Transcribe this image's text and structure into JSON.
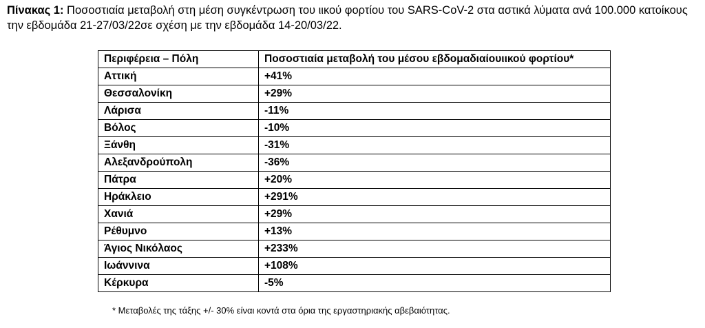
{
  "caption": {
    "label": "Πίνακας 1:",
    "text": "Ποσοστιαία μεταβολή στη μέση συγκέντρωση του ιικού φορτίου του SARS-CoV-2 στα αστικά λύματα ανά 100.000 κατοίκους την εβδομάδα 21-27/03/22σε σχέση με την εβδομάδα 14-20/03/22."
  },
  "table": {
    "headers": [
      "Περιφέρεια – Πόλη",
      "Ποσοστιαία μεταβολή του μέσου εβδομαδιαίουιικού φορτίου*"
    ],
    "rows": [
      {
        "city": "Αττική",
        "change": "+41%"
      },
      {
        "city": "Θεσσαλονίκη",
        "change": "+29%"
      },
      {
        "city": "Λάρισα",
        "change": "-11%"
      },
      {
        "city": "Βόλος",
        "change": "-10%"
      },
      {
        "city": "Ξάνθη",
        "change": "-31%"
      },
      {
        "city": "Αλεξανδρούπολη",
        "change": "-36%"
      },
      {
        "city": "Πάτρα",
        "change": "+20%"
      },
      {
        "city": "Ηράκλειο",
        "change": "+291%"
      },
      {
        "city": "Χανιά",
        "change": "+29%"
      },
      {
        "city": "Ρέθυμνο",
        "change": "+13%"
      },
      {
        "city": "Άγιος Νικόλαος",
        "change": "+233%"
      },
      {
        "city": "Ιωάννινα",
        "change": "+108%"
      },
      {
        "city": "Κέρκυρα",
        "change": "-5%"
      }
    ]
  },
  "footnote": "* Μεταβολές της τάξης +/- 30% είναι κοντά στα όρια της εργαστηριακής αβεβαιότητας."
}
